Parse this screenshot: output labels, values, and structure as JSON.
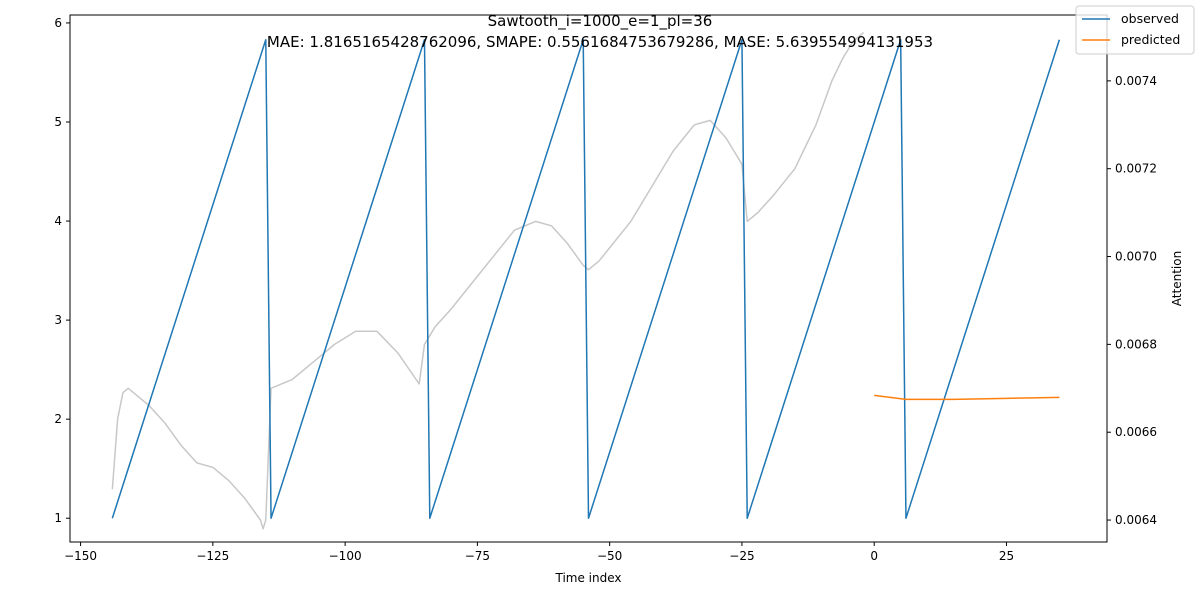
{
  "chart_data": {
    "type": "line",
    "title": "Sawtooth_i=1000_e=1_pl=36",
    "subtitle": "MAE: 1.8165165428762096, SMAPE: 0.5561684753679286, MASE: 5.639554994131953",
    "xlabel": "Time index",
    "ylabel": "",
    "y2label": "Attention",
    "xlim": [
      -152,
      44
    ],
    "ylim": [
      0.76,
      6.08
    ],
    "y2lim": [
      0.00635,
      0.00755
    ],
    "x_ticks": [
      -150,
      -125,
      -100,
      -75,
      -50,
      -25,
      0,
      25
    ],
    "y_ticks": [
      1,
      2,
      3,
      4,
      5,
      6
    ],
    "y2_ticks": [
      0.0064,
      0.0066,
      0.0068,
      0.007,
      0.0072,
      0.0074
    ],
    "legend_position": "top-right",
    "series": [
      {
        "name": "observed",
        "color": "#1f77b4",
        "axis": "left",
        "points": [
          [
            -144,
            1.0
          ],
          [
            -115,
            5.83
          ],
          [
            -114,
            1.0
          ],
          [
            -85,
            5.83
          ],
          [
            -84,
            1.0
          ],
          [
            -55,
            5.83
          ],
          [
            -54,
            1.0
          ],
          [
            -25,
            5.83
          ],
          [
            -24,
            1.0
          ],
          [
            5,
            5.83
          ],
          [
            6,
            1.0
          ],
          [
            35,
            5.83
          ]
        ]
      },
      {
        "name": "predicted",
        "color": "#ff7f0e",
        "axis": "left",
        "points": [
          [
            0,
            2.24
          ],
          [
            3,
            2.22
          ],
          [
            6,
            2.2
          ],
          [
            10,
            2.2
          ],
          [
            15,
            2.2
          ],
          [
            20,
            2.205
          ],
          [
            25,
            2.21
          ],
          [
            30,
            2.215
          ],
          [
            35,
            2.22
          ]
        ]
      },
      {
        "color": "#c8c8c8",
        "axis": "right",
        "points": [
          [
            -144,
            0.00647
          ],
          [
            -143,
            0.00663
          ],
          [
            -142,
            0.00669
          ],
          [
            -141,
            0.0067
          ],
          [
            -140,
            0.00669
          ],
          [
            -137,
            0.00666
          ],
          [
            -134,
            0.00662
          ],
          [
            -131,
            0.00657
          ],
          [
            -128,
            0.00653
          ],
          [
            -125,
            0.00652
          ],
          [
            -122,
            0.00649
          ],
          [
            -119,
            0.00645
          ],
          [
            -116,
            0.0064
          ],
          [
            -115.5,
            0.00638
          ],
          [
            -115,
            0.0064
          ],
          [
            -114,
            0.0067
          ],
          [
            -110,
            0.00672
          ],
          [
            -106,
            0.00676
          ],
          [
            -102,
            0.0068
          ],
          [
            -98,
            0.00683
          ],
          [
            -94,
            0.00683
          ],
          [
            -90,
            0.00678
          ],
          [
            -86,
            0.00671
          ],
          [
            -85,
            0.0068
          ],
          [
            -83,
            0.00684
          ],
          [
            -80,
            0.00688
          ],
          [
            -76,
            0.00694
          ],
          [
            -72,
            0.007
          ],
          [
            -68,
            0.00706
          ],
          [
            -64,
            0.00708
          ],
          [
            -61,
            0.00707
          ],
          [
            -58,
            0.00703
          ],
          [
            -55,
            0.00698
          ],
          [
            -54,
            0.00697
          ],
          [
            -52,
            0.00699
          ],
          [
            -50,
            0.00702
          ],
          [
            -46,
            0.00708
          ],
          [
            -42,
            0.00716
          ],
          [
            -38,
            0.00724
          ],
          [
            -34,
            0.0073
          ],
          [
            -31,
            0.00731
          ],
          [
            -28,
            0.00727
          ],
          [
            -26,
            0.00723
          ],
          [
            -25,
            0.00721
          ],
          [
            -24,
            0.00708
          ],
          [
            -22,
            0.0071
          ],
          [
            -19,
            0.00714
          ],
          [
            -15,
            0.0072
          ],
          [
            -11,
            0.0073
          ],
          [
            -8,
            0.0074
          ],
          [
            -6,
            0.00745
          ],
          [
            -4,
            0.00749
          ],
          [
            -2,
            0.00751
          ]
        ]
      }
    ]
  }
}
